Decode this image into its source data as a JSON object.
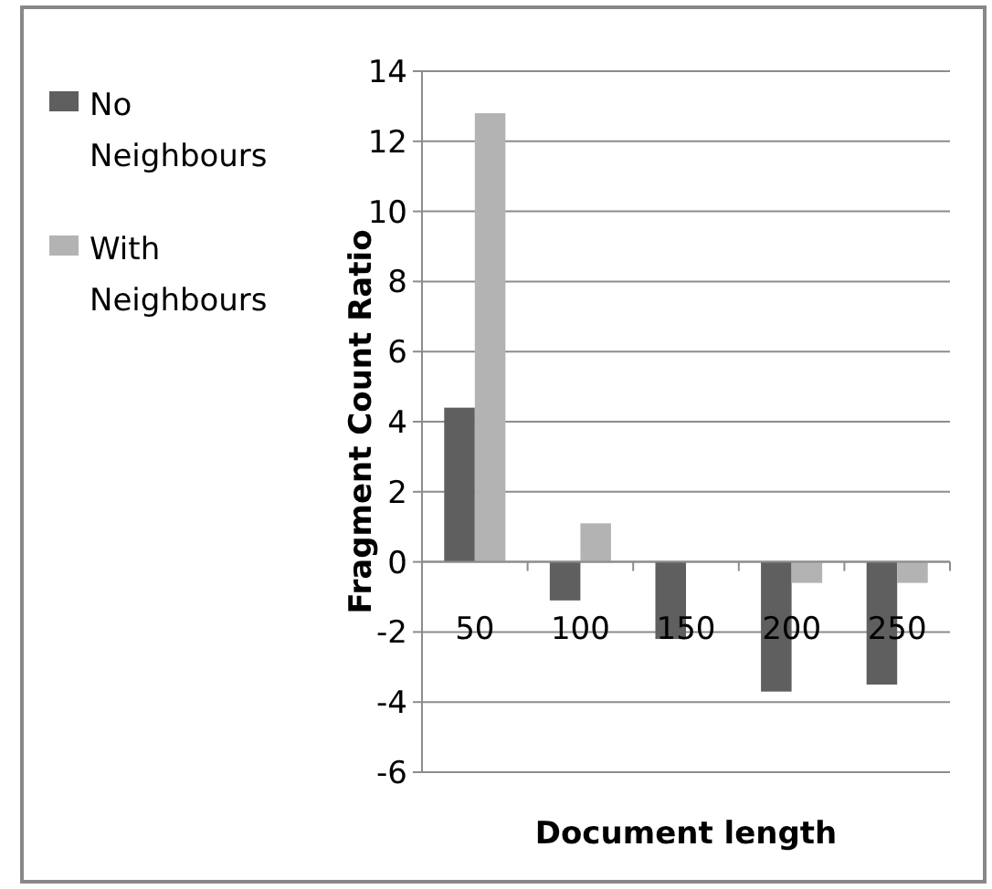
{
  "chart_data": {
    "type": "bar",
    "xlabel": "Document length",
    "ylabel": "Fragment Count Ratio",
    "categories": [
      "50",
      "100",
      "150",
      "200",
      "250"
    ],
    "series": [
      {
        "name": "No Neighbours",
        "color": "#5f5f5f",
        "values": [
          4.4,
          -1.1,
          -2.2,
          -3.7,
          -3.5
        ]
      },
      {
        "name": "With Neighbours",
        "color": "#b3b3b3",
        "values": [
          12.8,
          1.1,
          0,
          -0.6,
          -0.6
        ]
      }
    ],
    "ylim": [
      -6,
      14
    ],
    "yticks": [
      -6,
      -4,
      -2,
      0,
      2,
      4,
      6,
      8,
      10,
      12,
      14
    ],
    "grid": "y",
    "legend": "left"
  }
}
